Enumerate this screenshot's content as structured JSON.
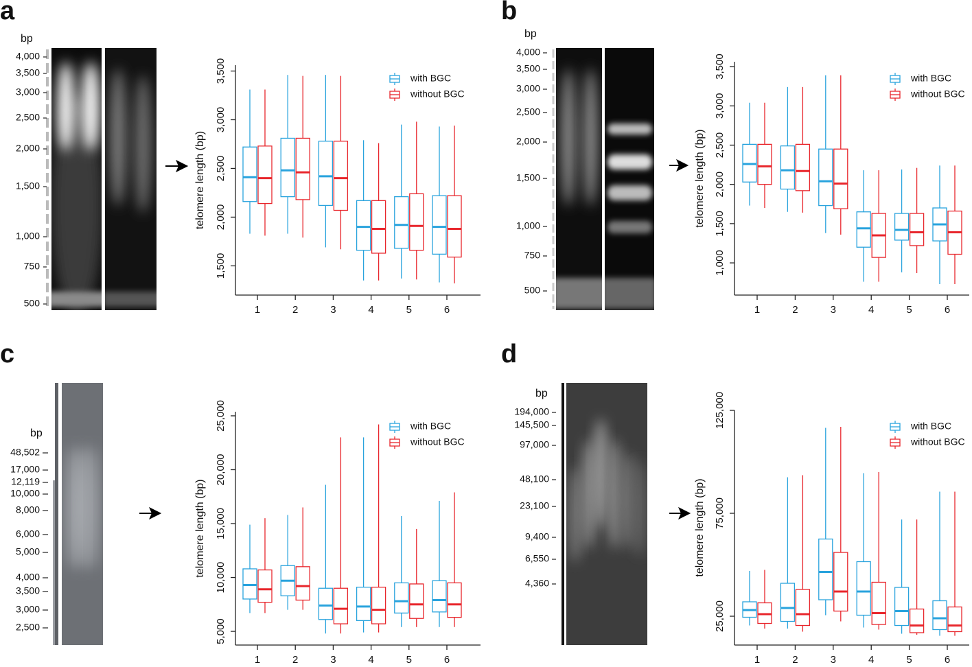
{
  "chart_data": [
    {
      "type": "box",
      "panel": "a",
      "ylabel": "telomere length (bp)",
      "gel": {
        "unit": "bp",
        "ladder": [
          "4,000",
          "3,500",
          "3,000",
          "2,500",
          "2,000",
          "1,500",
          "1,000",
          "750",
          "500"
        ]
      },
      "categories": [
        "1",
        "2",
        "3",
        "4",
        "5",
        "6"
      ],
      "ylim": [
        1200,
        3560
      ],
      "yticks": [
        {
          "value": 1500,
          "label": "1,500"
        },
        {
          "value": 2000,
          "label": "2,000"
        },
        {
          "value": 2500,
          "label": "2,500"
        },
        {
          "value": 3000,
          "label": "3,000"
        },
        {
          "value": 3500,
          "label": "3,500"
        }
      ],
      "series": [
        {
          "name": "with BGC",
          "color": "#29a3dd",
          "whislo": [
            1830,
            1830,
            1690,
            1350,
            1370,
            1330
          ],
          "q1": [
            2160,
            2210,
            2120,
            1660,
            1680,
            1620
          ],
          "med": [
            2410,
            2480,
            2420,
            1900,
            1920,
            1900
          ],
          "q3": [
            2720,
            2810,
            2780,
            2170,
            2210,
            2220
          ],
          "whishi": [
            3310,
            3460,
            3460,
            2790,
            2950,
            2930
          ]
        },
        {
          "name": "without BGC",
          "color": "#e8262c",
          "whislo": [
            1810,
            1790,
            1670,
            1350,
            1360,
            1320
          ],
          "q1": [
            2140,
            2180,
            2070,
            1630,
            1660,
            1590
          ],
          "med": [
            2400,
            2460,
            2400,
            1880,
            1910,
            1880
          ],
          "q3": [
            2730,
            2810,
            2780,
            2170,
            2240,
            2220
          ],
          "whishi": [
            3310,
            3450,
            3450,
            2760,
            2980,
            2940
          ]
        }
      ]
    },
    {
      "type": "box",
      "panel": "b",
      "ylabel": "telomere length (bp)",
      "gel": {
        "unit": "bp",
        "ladder": [
          "4,000",
          "3,500",
          "3,000",
          "2,500",
          "2,000",
          "1,500",
          "1,000",
          "750",
          "500"
        ]
      },
      "categories": [
        "1",
        "2",
        "3",
        "4",
        "5",
        "6"
      ],
      "ylim": [
        590,
        3562
      ],
      "yticks": [
        {
          "value": 1000,
          "label": "1,000"
        },
        {
          "value": 1500,
          "label": "1,500"
        },
        {
          "value": 2000,
          "label": "2,000"
        },
        {
          "value": 2500,
          "label": "2,500"
        },
        {
          "value": 3000,
          "label": "3,000"
        },
        {
          "value": 3500,
          "label": "3,500"
        }
      ],
      "series": [
        {
          "name": "with BGC",
          "color": "#29a3dd",
          "whislo": [
            1730,
            1650,
            1380,
            760,
            880,
            730
          ],
          "q1": [
            2030,
            1940,
            1730,
            1200,
            1290,
            1280
          ],
          "med": [
            2260,
            2180,
            2040,
            1440,
            1420,
            1490
          ],
          "q3": [
            2510,
            2490,
            2450,
            1650,
            1630,
            1700
          ],
          "whishi": [
            3040,
            3240,
            3390,
            2180,
            2190,
            2240
          ]
        },
        {
          "name": "without BGC",
          "color": "#e8262c",
          "whislo": [
            1700,
            1640,
            1360,
            760,
            870,
            730
          ],
          "q1": [
            2000,
            1920,
            1690,
            1070,
            1220,
            1110
          ],
          "med": [
            2230,
            2170,
            2010,
            1350,
            1390,
            1390
          ],
          "q3": [
            2510,
            2510,
            2450,
            1630,
            1630,
            1660
          ],
          "whishi": [
            3040,
            3240,
            3390,
            2180,
            2210,
            2240
          ]
        }
      ]
    },
    {
      "type": "box",
      "panel": "c",
      "ylabel": "telomere length (bp)",
      "gel": {
        "unit": "bp",
        "ladder": [
          "48,502",
          "17,000",
          "12,119",
          "10,000",
          "8,000",
          "6,000",
          "5,000",
          "4,000",
          "3,500",
          "3,000",
          "2,500"
        ]
      },
      "categories": [
        "1",
        "2",
        "3",
        "4",
        "5",
        "6"
      ],
      "ylim": [
        3730,
        25380
      ],
      "yticks": [
        {
          "value": 5000,
          "label": "5,000"
        },
        {
          "value": 10000,
          "label": "10,000"
        },
        {
          "value": 15000,
          "label": "15,000"
        },
        {
          "value": 20000,
          "label": "20,000"
        },
        {
          "value": 25000,
          "label": "25,000"
        }
      ],
      "series": [
        {
          "name": "with BGC",
          "color": "#29a3dd",
          "whislo": [
            6700,
            7000,
            4800,
            4900,
            5400,
            5400
          ],
          "q1": [
            8000,
            8300,
            6100,
            6000,
            6700,
            6800
          ],
          "med": [
            9300,
            9700,
            7400,
            7300,
            7800,
            7900
          ],
          "q3": [
            10800,
            11100,
            9000,
            9100,
            9500,
            9700
          ],
          "whishi": [
            14900,
            15800,
            18600,
            23000,
            15700,
            17100
          ]
        },
        {
          "name": "without BGC",
          "color": "#e8262c",
          "whislo": [
            6700,
            7000,
            4800,
            4900,
            5400,
            5400
          ],
          "q1": [
            7700,
            7900,
            5700,
            5700,
            6200,
            6300
          ],
          "med": [
            8900,
            9200,
            7100,
            7000,
            7500,
            7500
          ],
          "q3": [
            10700,
            11000,
            9000,
            9100,
            9400,
            9500
          ],
          "whishi": [
            15500,
            16500,
            23000,
            24200,
            14500,
            17900
          ]
        }
      ]
    },
    {
      "type": "box",
      "panel": "d",
      "ylabel": "telomere length (bp)",
      "gel": {
        "unit": "bp",
        "ladder": [
          "194,000",
          "145,500",
          "97,000",
          "48,100",
          "23,100",
          "9,400",
          "6,550",
          "4,360"
        ]
      },
      "categories": [
        "1",
        "2",
        "3",
        "4",
        "5",
        "6"
      ],
      "ylim": [
        11000,
        125000
      ],
      "yticks": [
        {
          "value": 25000,
          "label": "25,000"
        },
        {
          "value": 75000,
          "label": "75,000"
        },
        {
          "value": 125000,
          "label": "125,000"
        }
      ],
      "series": [
        {
          "name": "with BGC",
          "color": "#29a3dd",
          "whislo": [
            20500,
            19000,
            25500,
            19500,
            16500,
            15500
          ],
          "q1": [
            24500,
            22500,
            33000,
            25500,
            20500,
            18500
          ],
          "med": [
            28000,
            29000,
            46500,
            37000,
            27500,
            24000
          ],
          "q3": [
            32000,
            41000,
            62500,
            51500,
            39000,
            32500
          ],
          "whishi": [
            47000,
            92500,
            116500,
            94500,
            72000,
            85500
          ]
        },
        {
          "name": "without BGC",
          "color": "#e8262c",
          "whislo": [
            19000,
            17500,
            22500,
            18500,
            16000,
            15500
          ],
          "q1": [
            21500,
            20500,
            27500,
            21000,
            17000,
            17500
          ],
          "med": [
            26000,
            26000,
            37000,
            26500,
            20500,
            20500
          ],
          "q3": [
            31500,
            38000,
            56000,
            41500,
            28500,
            29500
          ],
          "whishi": [
            47500,
            93500,
            117000,
            95000,
            72000,
            85500
          ]
        }
      ]
    }
  ]
}
